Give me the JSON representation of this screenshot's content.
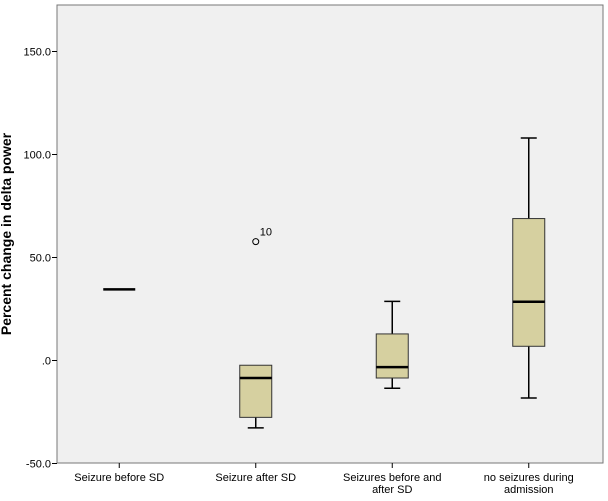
{
  "chart_data": {
    "type": "boxplot",
    "title": "",
    "xlabel": "",
    "ylabel": "Percent change in delta power",
    "ylim": [
      -50,
      170
    ],
    "yticks": [
      -50,
      0,
      50,
      100,
      150
    ],
    "ytick_labels": [
      "-50.0",
      ".0",
      "50.0",
      "100.0",
      "150.0"
    ],
    "grid": false,
    "categories": [
      [
        "Seizure before SD"
      ],
      [
        "Seizure after SD"
      ],
      [
        "Seizures before and",
        "after SD"
      ],
      [
        "no seizures during",
        "admission"
      ]
    ],
    "boxes": [
      {
        "min": 34.5,
        "q1": 34.5,
        "median": 34.5,
        "q3": 34.5,
        "max": 34.5,
        "outliers": []
      },
      {
        "min": -32.7,
        "q1": -27.6,
        "median": -8.5,
        "q3": -2.3,
        "max": -2.3,
        "outliers": [
          {
            "value": 57.7,
            "label": "10"
          }
        ]
      },
      {
        "min": -13.5,
        "q1": -8.5,
        "median": -3.2,
        "q3": 12.9,
        "max": 28.7,
        "outliers": []
      },
      {
        "min": -18.2,
        "q1": 6.9,
        "median": 28.5,
        "q3": 68.9,
        "max": 108.0,
        "outliers": []
      }
    ],
    "colors": {
      "box_fill": "#d6d0a0",
      "plot_bg": "#f0f0f0",
      "stroke": "#000000"
    }
  }
}
